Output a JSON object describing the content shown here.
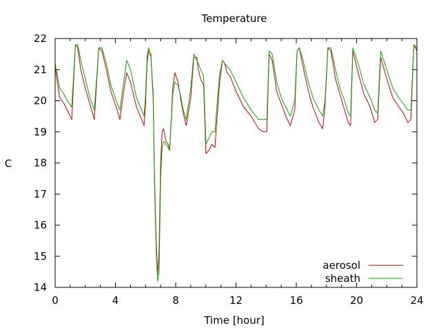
{
  "chart_data": {
    "type": "line",
    "title": "Temperature",
    "xlabel": "Time [hour]",
    "ylabel": "C",
    "xlim": [
      0,
      24
    ],
    "ylim": [
      14,
      22
    ],
    "xticks": [
      0,
      4,
      8,
      12,
      16,
      20,
      24
    ],
    "yticks": [
      14,
      15,
      16,
      17,
      18,
      19,
      20,
      21,
      22
    ],
    "grid": false,
    "legend_position": "bottom-right",
    "series": [
      {
        "name": "aerosol",
        "color": "#cc0000",
        "x": [
          0,
          0.3,
          0.6,
          0.8,
          1.1,
          1.35,
          1.5,
          1.7,
          2.0,
          2.3,
          2.6,
          2.9,
          3.1,
          3.4,
          3.7,
          4.05,
          4.3,
          4.55,
          4.75,
          5.0,
          5.4,
          5.9,
          6.0,
          6.1,
          6.2,
          6.35,
          6.5,
          6.6,
          6.7,
          6.8,
          6.9,
          7.0,
          7.1,
          7.2,
          7.35,
          7.5,
          7.6,
          7.8,
          7.95,
          8.15,
          8.35,
          8.5,
          8.7,
          9.0,
          9.2,
          9.4,
          9.5,
          9.65,
          9.85,
          10.0,
          10.2,
          10.4,
          10.6,
          10.9,
          11.1,
          11.25,
          11.4,
          11.6,
          12.0,
          12.5,
          13.0,
          13.5,
          13.8,
          14.05,
          14.2,
          14.4,
          14.7,
          15.0,
          15.3,
          15.6,
          15.9,
          16.05,
          16.2,
          16.45,
          16.8,
          17.1,
          17.5,
          17.75,
          17.9,
          18.1,
          18.3,
          18.6,
          18.9,
          19.2,
          19.45,
          19.6,
          19.75,
          20.1,
          20.5,
          20.9,
          21.2,
          21.4,
          21.6,
          22.0,
          22.4,
          22.8,
          23.1,
          23.4,
          23.6,
          23.8,
          24.0
        ],
        "y": [
          21.1,
          20.1,
          19.9,
          19.7,
          19.4,
          21.8,
          21.7,
          21.0,
          20.4,
          19.9,
          19.4,
          21.7,
          21.6,
          21.0,
          20.3,
          19.8,
          19.4,
          20.3,
          20.9,
          20.6,
          19.8,
          19.2,
          19.9,
          21.2,
          21.6,
          21.5,
          20.1,
          17.5,
          15.5,
          14.4,
          15.2,
          18.0,
          19.0,
          19.1,
          18.7,
          18.6,
          18.4,
          20.4,
          20.9,
          20.6,
          20.0,
          19.6,
          19.2,
          20.1,
          21.4,
          21.4,
          21.0,
          20.7,
          20.5,
          18.3,
          18.4,
          18.6,
          18.5,
          20.5,
          21.3,
          21.2,
          20.9,
          20.8,
          20.3,
          19.8,
          19.5,
          19.1,
          19.0,
          19.0,
          21.5,
          21.3,
          20.3,
          19.9,
          19.5,
          19.2,
          19.7,
          21.6,
          21.7,
          21.1,
          20.3,
          19.8,
          19.3,
          19.1,
          19.8,
          21.7,
          21.6,
          20.7,
          20.2,
          19.7,
          19.3,
          19.2,
          21.6,
          20.9,
          20.2,
          19.8,
          19.3,
          19.4,
          21.4,
          20.7,
          20.1,
          19.8,
          19.6,
          19.3,
          19.4,
          21.8,
          21.6
        ]
      },
      {
        "name": "sheath",
        "color": "#00aa00",
        "x": [
          0,
          0.3,
          0.6,
          0.8,
          1.1,
          1.35,
          1.5,
          1.7,
          2.0,
          2.3,
          2.6,
          2.9,
          3.1,
          3.4,
          3.7,
          4.05,
          4.3,
          4.55,
          4.75,
          5.0,
          5.4,
          5.9,
          6.0,
          6.1,
          6.2,
          6.35,
          6.5,
          6.6,
          6.7,
          6.8,
          6.9,
          7.0,
          7.1,
          7.2,
          7.35,
          7.5,
          7.6,
          7.8,
          7.95,
          8.15,
          8.35,
          8.5,
          8.7,
          9.0,
          9.2,
          9.4,
          9.5,
          9.65,
          9.85,
          10.0,
          10.2,
          10.4,
          10.6,
          10.9,
          11.1,
          11.25,
          11.4,
          11.6,
          12.0,
          12.5,
          13.0,
          13.5,
          13.8,
          14.05,
          14.2,
          14.4,
          14.7,
          15.0,
          15.3,
          15.6,
          15.9,
          16.05,
          16.2,
          16.45,
          16.8,
          17.1,
          17.5,
          17.75,
          17.9,
          18.1,
          18.3,
          18.6,
          18.9,
          19.2,
          19.45,
          19.6,
          19.75,
          20.1,
          20.5,
          20.9,
          21.2,
          21.4,
          21.6,
          22.0,
          22.4,
          22.8,
          23.1,
          23.4,
          23.6,
          23.8,
          24.0
        ],
        "y": [
          21.2,
          20.4,
          20.2,
          20.0,
          19.8,
          21.8,
          21.8,
          21.3,
          20.7,
          20.1,
          19.7,
          21.7,
          21.7,
          21.2,
          20.5,
          20.0,
          19.7,
          20.6,
          21.3,
          21.0,
          20.1,
          19.5,
          20.2,
          21.4,
          21.7,
          21.4,
          20.3,
          17.2,
          15.2,
          14.2,
          14.5,
          17.5,
          18.5,
          18.7,
          18.6,
          18.5,
          18.4,
          20.2,
          20.6,
          20.5,
          20.1,
          19.7,
          19.4,
          20.4,
          21.5,
          21.3,
          21.2,
          21.0,
          20.8,
          18.6,
          18.8,
          19.0,
          19.0,
          20.8,
          21.3,
          21.2,
          21.1,
          21.0,
          20.6,
          20.1,
          19.7,
          19.4,
          19.4,
          19.4,
          21.6,
          21.5,
          20.6,
          20.1,
          19.8,
          19.5,
          20.0,
          21.6,
          21.7,
          21.3,
          20.6,
          20.1,
          19.7,
          19.5,
          20.0,
          21.7,
          21.7,
          21.0,
          20.4,
          20.0,
          19.6,
          19.5,
          21.7,
          21.2,
          20.5,
          20.1,
          19.7,
          19.6,
          21.6,
          21.0,
          20.4,
          20.1,
          19.9,
          19.7,
          19.7,
          21.8,
          21.7
        ]
      }
    ]
  }
}
